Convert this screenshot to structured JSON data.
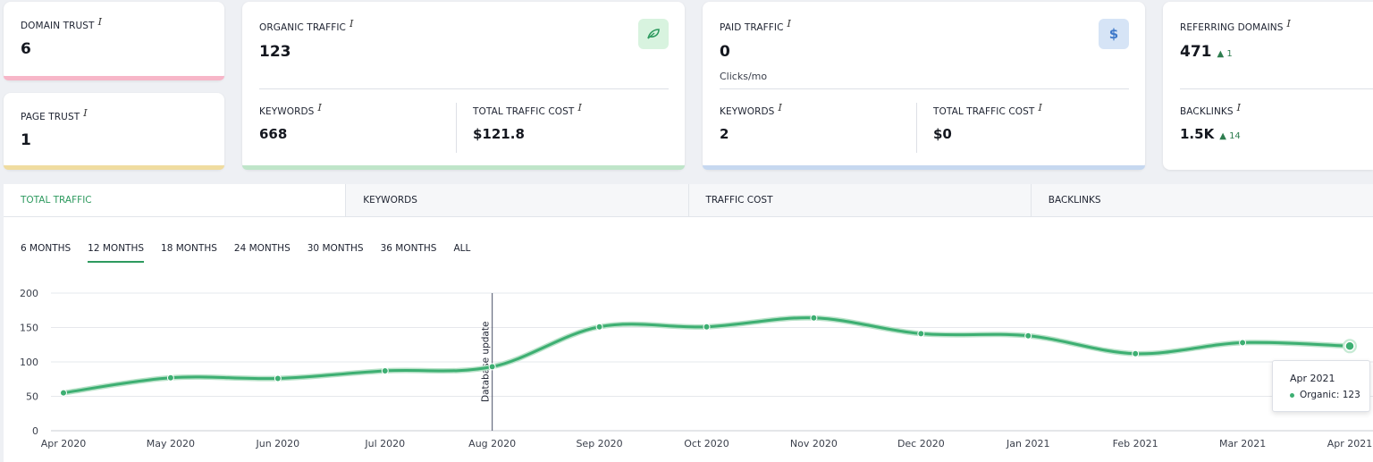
{
  "cards": {
    "domain_trust": {
      "label": "DOMAIN TRUST",
      "value": "6"
    },
    "page_trust": {
      "label": "PAGE TRUST",
      "value": "1"
    },
    "organic": {
      "label": "ORGANIC TRAFFIC",
      "value": "123",
      "keywords_label": "KEYWORDS",
      "keywords_value": "668",
      "cost_label": "TOTAL TRAFFIC COST",
      "cost_value": "$121.8",
      "icon": "leaf-icon"
    },
    "paid": {
      "label": "PAID TRAFFIC",
      "value": "0",
      "sub": "Clicks/mo",
      "keywords_label": "KEYWORDS",
      "keywords_value": "2",
      "cost_label": "TOTAL TRAFFIC COST",
      "cost_value": "$0",
      "icon": "dollar-icon",
      "icon_glyph": "$"
    },
    "referring": {
      "label": "REFERRING DOMAINS",
      "value": "471",
      "delta": "▲ 1",
      "backlinks_label": "BACKLINKS",
      "backlinks_value": "1.5K",
      "backlinks_delta": "▲ 14"
    },
    "info_glyph": "i"
  },
  "tabs": [
    "TOTAL TRAFFIC",
    "KEYWORDS",
    "TRAFFIC COST",
    "BACKLINKS"
  ],
  "ranges": [
    "6 MONTHS",
    "12 MONTHS",
    "18 MONTHS",
    "24 MONTHS",
    "30 MONTHS",
    "36 MONTHS",
    "ALL"
  ],
  "colors": {
    "accent": "#2e9a5f",
    "line": "#3daf72",
    "pink": "#f7b6c8",
    "yellow": "#f0dca0",
    "green": "#bfe5c9",
    "blue": "#c6d8f0"
  },
  "chart_data": {
    "type": "line",
    "x": [
      "Apr 2020",
      "May 2020",
      "Jun 2020",
      "Jul 2020",
      "Aug 2020",
      "Sep 2020",
      "Oct 2020",
      "Nov 2020",
      "Dec 2020",
      "Jan 2021",
      "Feb 2021",
      "Mar 2021",
      "Apr 2021"
    ],
    "series": [
      {
        "name": "Organic",
        "values": [
          55,
          77,
          76,
          87,
          93,
          151,
          151,
          164,
          141,
          138,
          112,
          128,
          123
        ]
      }
    ],
    "yticks": [
      0,
      50,
      100,
      150,
      200
    ],
    "ylim": [
      0,
      200
    ],
    "grid": true,
    "annotation": {
      "x": "Aug 2020",
      "text": "Database update"
    },
    "tooltip": {
      "title": "Apr 2021",
      "line": "Organic: 123"
    }
  }
}
